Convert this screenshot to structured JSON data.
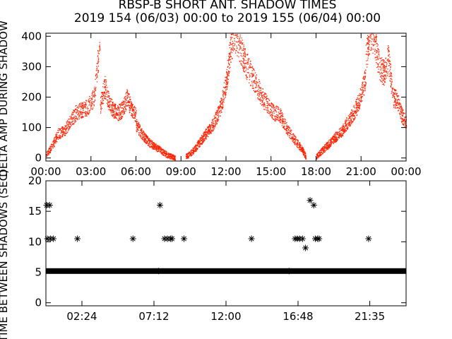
{
  "title": "RBSP-B SHORT ANT. SHADOW TIMES",
  "subtitle": "2019 154 (06/03) 00:00 to 2019 155 (06/04) 00:00",
  "chart_data": [
    {
      "type": "scatter",
      "ylabel": "DELTA AMP DURING SHADOW",
      "ylim": [
        -10,
        410
      ],
      "xlim": [
        0,
        24
      ],
      "x_unit": "hours",
      "yticks": [
        "0",
        "100",
        "200",
        "300",
        "400"
      ],
      "yticks_values": [
        0,
        100,
        200,
        300,
        400
      ],
      "xticks": [
        "00:00",
        "03:00",
        "06:00",
        "09:00",
        "12:00",
        "15:00",
        "18:00",
        "21:00",
        "00:00"
      ],
      "xticks_values": [
        0,
        3,
        6,
        9,
        12,
        15,
        18,
        21,
        24
      ],
      "color": "#ff2200",
      "segments": [
        {
          "x": [
            0.0,
            0.4,
            0.8,
            1.2,
            1.6,
            2.0,
            2.4,
            2.8,
            3.2,
            3.6
          ],
          "y": [
            10,
            40,
            80,
            90,
            120,
            150,
            160,
            170,
            200,
            390
          ]
        },
        {
          "x": [
            3.6,
            3.9,
            4.2,
            4.5,
            4.8,
            5.1,
            5.4,
            5.7,
            6.0
          ],
          "y": [
            170,
            240,
            180,
            160,
            150,
            160,
            200,
            160,
            140
          ]
        },
        {
          "x": [
            6.0,
            6.3,
            6.6,
            6.9,
            7.2,
            7.5,
            7.8,
            8.1,
            8.4,
            8.6
          ],
          "y": [
            110,
            85,
            65,
            50,
            40,
            30,
            20,
            10,
            5,
            0
          ]
        },
        {
          "x": [
            9.3,
            9.6,
            9.9,
            10.2,
            10.5,
            10.8,
            11.1,
            11.4,
            11.7,
            12.0,
            12.2,
            12.5
          ],
          "y": [
            5,
            15,
            30,
            50,
            70,
            90,
            110,
            140,
            180,
            250,
            330,
            410
          ]
        },
        {
          "x": [
            12.5,
            12.9,
            13.2,
            13.6,
            14.0,
            14.4,
            14.8,
            15.2,
            15.6,
            16.0,
            16.4,
            16.8,
            17.1,
            17.3
          ],
          "y": [
            410,
            370,
            320,
            280,
            240,
            200,
            170,
            150,
            140,
            100,
            70,
            45,
            25,
            5
          ]
        },
        {
          "x": [
            18.0,
            18.3,
            18.6,
            18.9,
            19.2,
            19.5,
            19.8,
            20.1,
            20.4,
            20.7,
            21.0,
            21.3
          ],
          "y": [
            5,
            20,
            35,
            50,
            65,
            80,
            95,
            120,
            140,
            170,
            210,
            270
          ]
        },
        {
          "x": [
            21.3,
            21.6,
            21.9,
            22.2,
            22.5,
            22.8,
            23.1,
            23.4,
            23.7,
            24.0
          ],
          "y": [
            330,
            410,
            380,
            300,
            280,
            330,
            200,
            190,
            140,
            120
          ]
        }
      ]
    },
    {
      "type": "scatter",
      "ylabel": "TIME BETWEEN SHADOWS (SEC)",
      "ylim": [
        -0.5,
        20
      ],
      "xlim": [
        0,
        24
      ],
      "x_unit": "hours",
      "yticks": [
        "0",
        "5",
        "10",
        "15",
        "20"
      ],
      "yticks_values": [
        0,
        5,
        10,
        15,
        20
      ],
      "xticks": [
        "02:24",
        "07:12",
        "12:00",
        "16:48",
        "21:35"
      ],
      "xticks_values": [
        2.4,
        7.2,
        12.0,
        16.8,
        21.58
      ],
      "marker": "asterisk",
      "color": "#000000",
      "baseline": {
        "y": 5.2,
        "x_from": 0.0,
        "x_to": 24.0
      },
      "points": {
        "x": [
          0.05,
          0.25,
          0.1,
          0.3,
          0.5,
          2.1,
          5.8,
          7.6,
          7.9,
          8.1,
          8.3,
          8.4,
          9.2,
          13.7,
          16.6,
          16.75,
          16.9,
          17.1,
          17.3,
          17.6,
          17.85,
          17.95,
          18.1,
          18.2,
          21.5,
          7.5,
          16.2
        ],
        "y": [
          16.0,
          16.0,
          10.5,
          10.5,
          10.5,
          10.5,
          10.5,
          16.0,
          10.5,
          10.5,
          10.5,
          10.5,
          10.5,
          10.5,
          10.5,
          10.5,
          10.5,
          10.5,
          9.0,
          16.8,
          16.0,
          10.5,
          10.5,
          10.5,
          10.5,
          5.2,
          5.2
        ]
      }
    }
  ]
}
